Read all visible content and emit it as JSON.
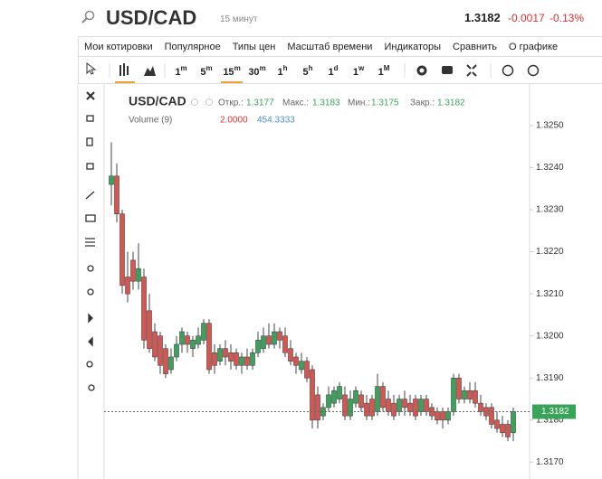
{
  "header": {
    "symbol": "USD/CAD",
    "interval": "15 минут",
    "price": "1.3182",
    "change": "-0.0017",
    "change_pct": "-0.13%"
  },
  "menu": [
    "Мои котировки",
    "Популярное",
    "Типы цен",
    "Масштаб времени",
    "Индикаторы",
    "Сравнить",
    "О графике"
  ],
  "intervals": [
    {
      "num": "1",
      "unit": "m"
    },
    {
      "num": "5",
      "unit": "m"
    },
    {
      "num": "15",
      "unit": "m"
    },
    {
      "num": "30",
      "unit": "m"
    },
    {
      "num": "1",
      "unit": "h"
    },
    {
      "num": "5",
      "unit": "h"
    },
    {
      "num": "1",
      "unit": "d"
    },
    {
      "num": "1",
      "unit": "w"
    },
    {
      "num": "1",
      "unit": "M"
    }
  ],
  "legend": {
    "symbol": "USD/CAD",
    "open_label": "Откр.:",
    "open": "1.3177",
    "high_label": "Макс.:",
    "high": "1.3183",
    "low_label": "Мин.:",
    "low": "1.3175",
    "close_label": "Закр.:",
    "close": "1.3182",
    "volume": "Volume (9)",
    "volume_a": "2.0000",
    "volume_b": "454.3333"
  },
  "chart_data": {
    "type": "candlestick",
    "up_color": "#3aa35a",
    "down_color": "#d9534f",
    "last_price_label": "1.3182",
    "ylim": [
      1.3166,
      1.3259
    ],
    "yticks": [
      {
        "value": 1.325,
        "label": "1.3250"
      },
      {
        "value": 1.324,
        "label": "1.3240"
      },
      {
        "value": 1.323,
        "label": "1.3230"
      },
      {
        "value": 1.322,
        "label": "1.3220"
      },
      {
        "value": 1.321,
        "label": "1.3210"
      },
      {
        "value": 1.32,
        "label": "1.3200"
      },
      {
        "value": 1.319,
        "label": "1.3190"
      },
      {
        "value": 1.318,
        "label": "1.3180"
      },
      {
        "value": 1.317,
        "label": "1.3170"
      }
    ],
    "open": [
      1.3236,
      1.3238,
      1.3229,
      1.3214,
      1.3218,
      1.3213,
      1.3214,
      1.3206,
      1.3201,
      1.32,
      1.3197,
      1.3192,
      1.3195,
      1.3198,
      1.32,
      1.3197,
      1.3198,
      1.3199,
      1.3203,
      1.3196,
      1.3194,
      1.3197,
      1.3196,
      1.3196,
      1.3193,
      1.3195,
      1.3193,
      1.3196,
      1.3197,
      1.32,
      1.3198,
      1.3201,
      1.32,
      1.3197,
      1.3195,
      1.3192,
      1.3194,
      1.3192,
      1.3186,
      1.3181,
      1.3183,
      1.3184,
      1.3185,
      1.3186,
      1.3181,
      1.3184,
      1.3186,
      1.3184,
      1.3185,
      1.3182,
      1.3188,
      1.3185,
      1.3184,
      1.3182,
      1.3185,
      1.3184,
      1.3185,
      1.3182,
      1.3185,
      1.3183,
      1.3182,
      1.3182,
      1.318,
      1.3182,
      1.319,
      1.3185,
      1.3187,
      1.3187,
      1.3184,
      1.3183,
      1.3183,
      1.318,
      1.3179,
      1.3179,
      1.3177
    ],
    "high": [
      1.3246,
      1.3241,
      1.323,
      1.322,
      1.322,
      1.3222,
      1.3216,
      1.321,
      1.3203,
      1.3201,
      1.3198,
      1.3197,
      1.32,
      1.3202,
      1.3201,
      1.32,
      1.3202,
      1.3204,
      1.3204,
      1.3198,
      1.3198,
      1.3199,
      1.3198,
      1.3197,
      1.3196,
      1.3197,
      1.3197,
      1.3201,
      1.3202,
      1.3203,
      1.3203,
      1.3202,
      1.3202,
      1.3199,
      1.3196,
      1.3196,
      1.3195,
      1.3193,
      1.3188,
      1.3184,
      1.3188,
      1.3188,
      1.3189,
      1.3188,
      1.3187,
      1.3188,
      1.3187,
      1.3186,
      1.3186,
      1.3191,
      1.3189,
      1.3187,
      1.3186,
      1.3186,
      1.3187,
      1.3186,
      1.3186,
      1.3186,
      1.3186,
      1.3184,
      1.3183,
      1.3183,
      1.3183,
      1.3191,
      1.3191,
      1.3188,
      1.3189,
      1.3189,
      1.3186,
      1.3184,
      1.3184,
      1.3182,
      1.3181,
      1.318,
      1.3183
    ],
    "low": [
      1.3231,
      1.3227,
      1.321,
      1.3208,
      1.3211,
      1.3211,
      1.3197,
      1.3196,
      1.3194,
      1.3191,
      1.319,
      1.3191,
      1.3194,
      1.3196,
      1.3196,
      1.3195,
      1.3197,
      1.3198,
      1.3191,
      1.3191,
      1.3193,
      1.3193,
      1.3192,
      1.3192,
      1.3191,
      1.3192,
      1.3192,
      1.3195,
      1.3196,
      1.3197,
      1.3197,
      1.3197,
      1.3195,
      1.3193,
      1.3191,
      1.3191,
      1.3189,
      1.3178,
      1.3178,
      1.318,
      1.3182,
      1.3183,
      1.3184,
      1.318,
      1.318,
      1.3183,
      1.3182,
      1.318,
      1.318,
      1.3181,
      1.3182,
      1.3181,
      1.318,
      1.3181,
      1.3181,
      1.3181,
      1.318,
      1.3181,
      1.3181,
      1.318,
      1.3179,
      1.3178,
      1.3179,
      1.3181,
      1.3184,
      1.3184,
      1.3184,
      1.3183,
      1.3181,
      1.318,
      1.3178,
      1.3177,
      1.3176,
      1.3175,
      1.3175
    ],
    "close": [
      1.3238,
      1.3229,
      1.3212,
      1.321,
      1.3213,
      1.3216,
      1.3199,
      1.3197,
      1.3195,
      1.3193,
      1.3191,
      1.3195,
      1.3198,
      1.3201,
      1.3198,
      1.3199,
      1.32,
      1.3203,
      1.3192,
      1.3193,
      1.3197,
      1.3195,
      1.3194,
      1.3193,
      1.3195,
      1.3193,
      1.3196,
      1.3199,
      1.32,
      1.3198,
      1.3201,
      1.3199,
      1.3196,
      1.3194,
      1.3193,
      1.3194,
      1.319,
      1.318,
      1.318,
      1.3183,
      1.3186,
      1.3187,
      1.3188,
      1.3181,
      1.3185,
      1.3187,
      1.3183,
      1.3181,
      1.3181,
      1.3188,
      1.3183,
      1.3182,
      1.3181,
      1.3185,
      1.3183,
      1.3182,
      1.3181,
      1.3185,
      1.3182,
      1.3181,
      1.318,
      1.318,
      1.3182,
      1.319,
      1.3185,
      1.3187,
      1.3185,
      1.3184,
      1.3182,
      1.3181,
      1.3179,
      1.3178,
      1.3177,
      1.3176,
      1.3182
    ]
  }
}
